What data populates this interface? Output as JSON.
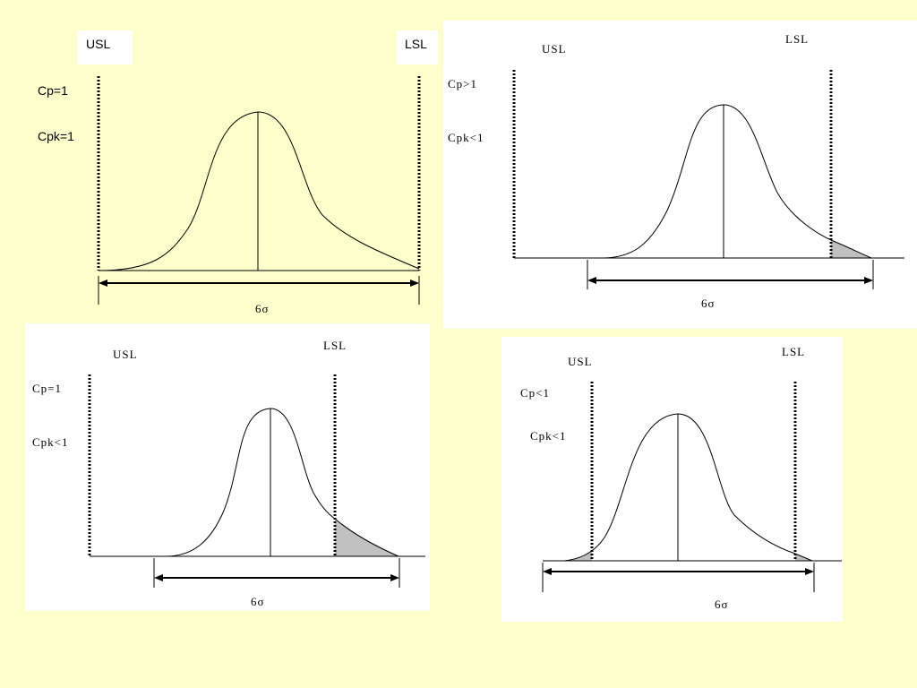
{
  "diagrams": [
    {
      "usl": "USL",
      "lsl": "LSL",
      "cp": "Cp=1",
      "cpk": "Cpk=1",
      "span": "6σ"
    },
    {
      "usl": "USL",
      "lsl": "LSL",
      "cp": "Cp>1",
      "cpk": "Cpk<1",
      "span": "6σ"
    },
    {
      "usl": "USL",
      "lsl": "LSL",
      "cp": "Cp=1",
      "cpk": "Cpk<1",
      "span": "6σ"
    },
    {
      "usl": "USL",
      "lsl": "LSL",
      "cp": "Cp<1",
      "cpk": "Cpk<1",
      "span": "6σ"
    }
  ],
  "colors": {
    "background": "#ffffcc",
    "panel": "#ffffff",
    "shaded_tail": "#c0c0c0",
    "line": "#000000"
  }
}
